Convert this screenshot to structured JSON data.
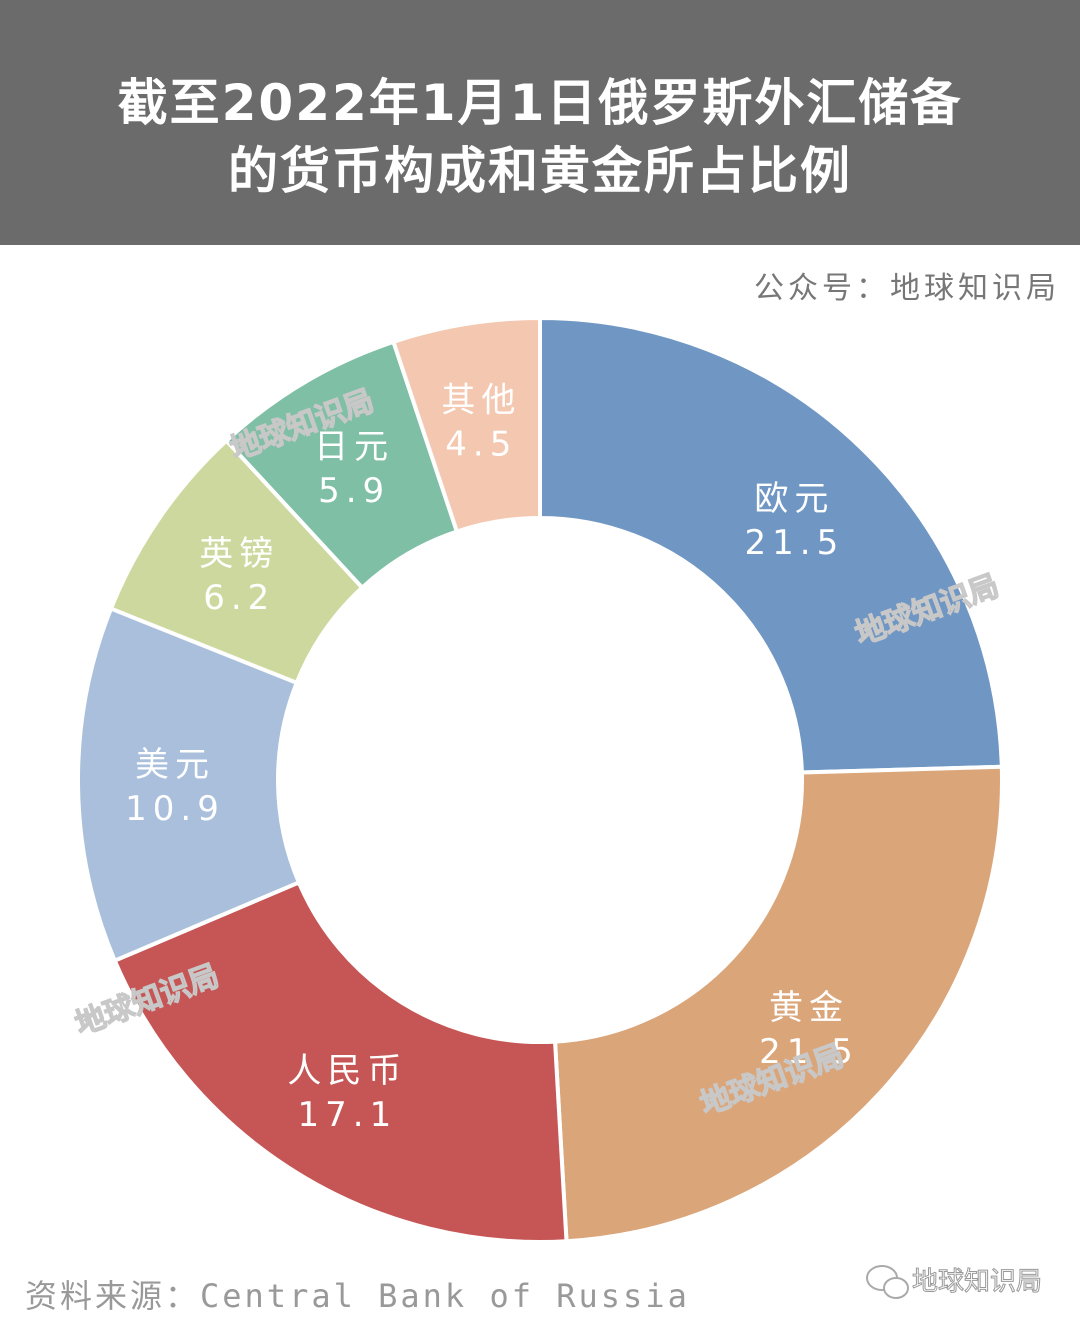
{
  "chart_data": {
    "type": "donut",
    "title": [
      "截至2022年1月1日俄罗斯外汇储备",
      "的货币构成和黄金所占比例"
    ],
    "subtitle": "公众号：地球知识局",
    "source": "资料来源：Central Bank of Russia",
    "footer": "地球知识局",
    "watermark": "地球知识局",
    "categories": [
      "欧元",
      "黄金",
      "人民币",
      "美元",
      "英镑",
      "日元",
      "其他"
    ],
    "values": [
      21.5,
      21.5,
      17.1,
      10.9,
      6.2,
      5.9,
      4.5
    ],
    "colors": [
      "#7097c3",
      "#dba57a",
      "#c65555",
      "#a9bfdc",
      "#cdd89e",
      "#7fbfa5",
      "#f4c8b0"
    ]
  }
}
